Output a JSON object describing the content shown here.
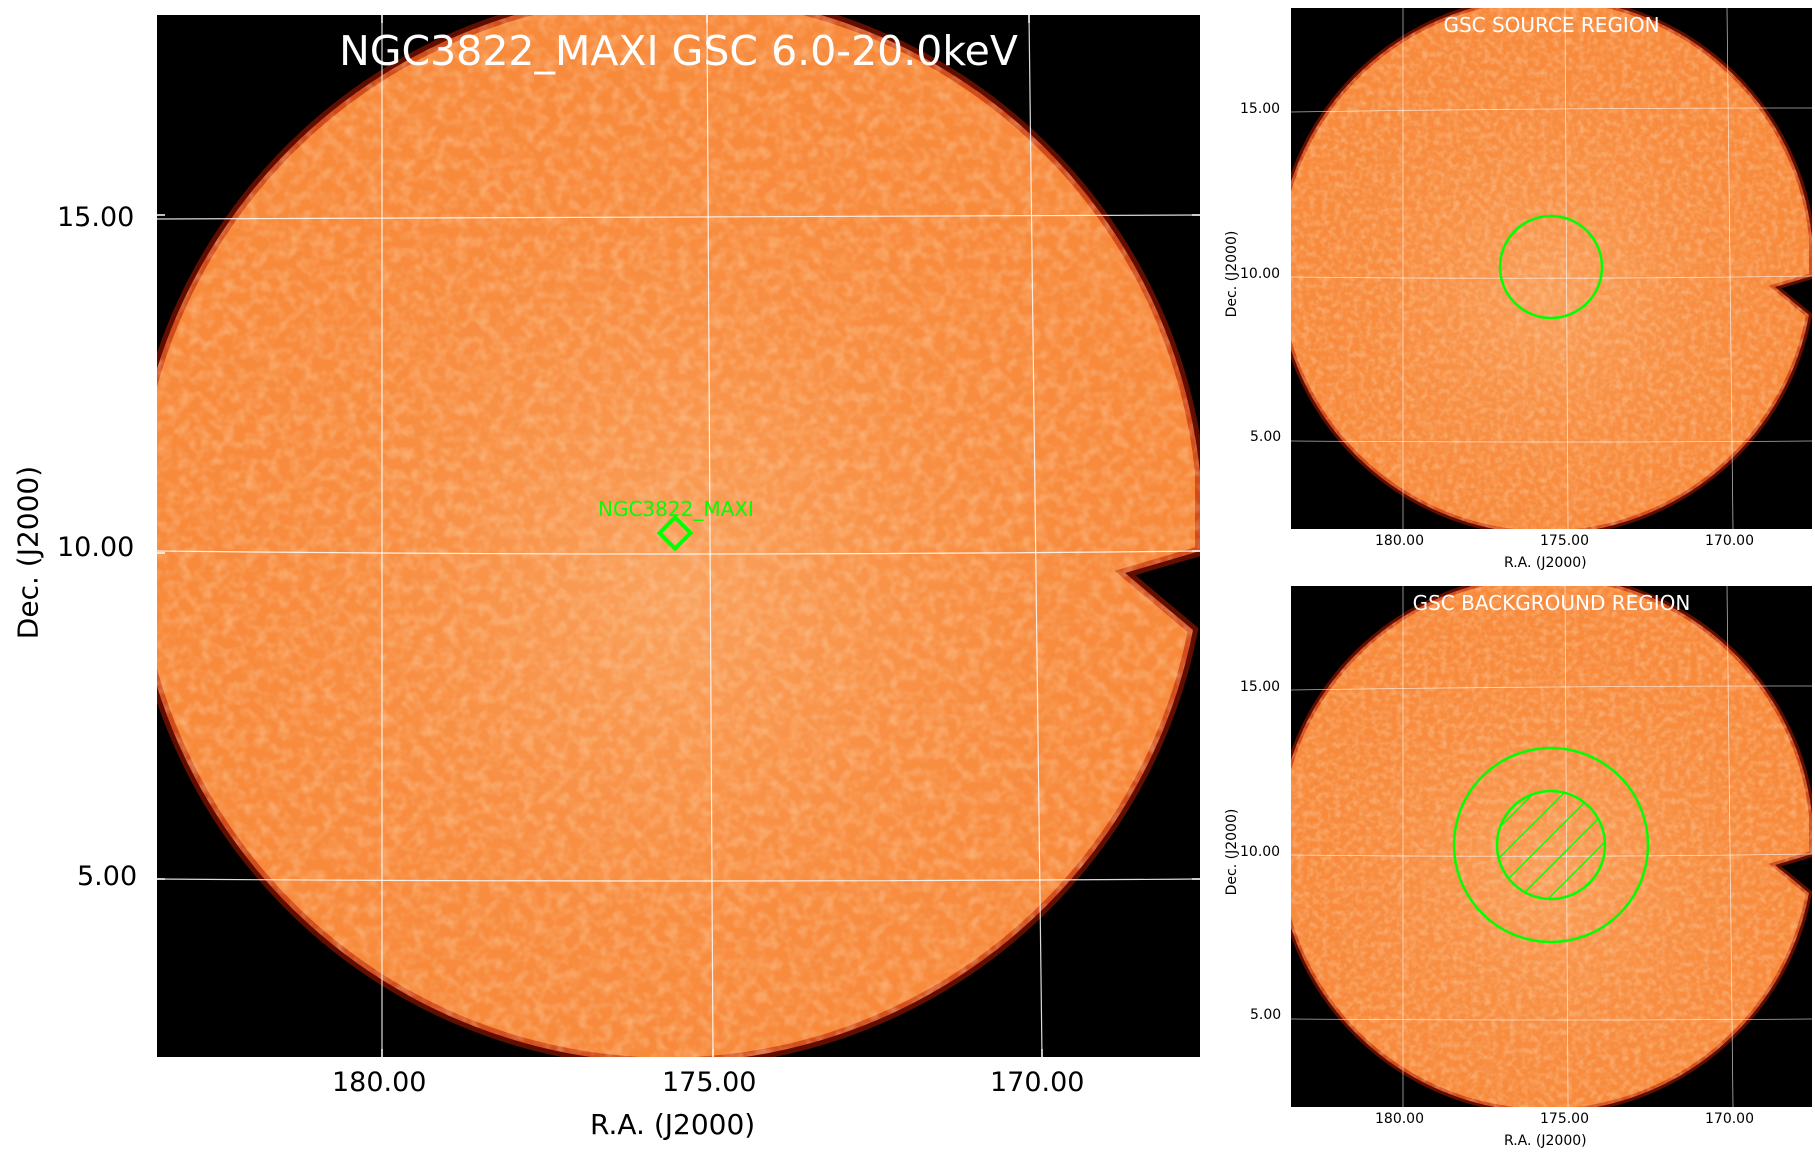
{
  "colors": {
    "accent": "#00ff00",
    "grid": "#ffffff",
    "background": "#000000",
    "field": "#f88a3c"
  },
  "main": {
    "title": "NGC3822_MAXI GSC 6.0-20.0keV",
    "source_label": "NGC3822_MAXI",
    "xlabel": "R.A. (J2000)",
    "ylabel": "Dec. (J2000)",
    "xticks": [
      "180.00",
      "175.00",
      "170.00"
    ],
    "yticks": [
      "15.00",
      "10.00",
      "5.00"
    ]
  },
  "source_panel": {
    "title": "GSC SOURCE REGION",
    "xlabel": "R.A. (J2000)",
    "ylabel": "Dec. (J2000)",
    "xticks": [
      "180.00",
      "175.00",
      "170.00"
    ],
    "yticks": [
      "15.00",
      "10.00",
      "5.00"
    ]
  },
  "background_panel": {
    "title": "GSC BACKGROUND REGION",
    "xlabel": "R.A. (J2000)",
    "ylabel": "Dec. (J2000)",
    "xticks": [
      "180.00",
      "175.00",
      "170.00"
    ],
    "yticks": [
      "15.00",
      "10.00",
      "5.00"
    ]
  }
}
